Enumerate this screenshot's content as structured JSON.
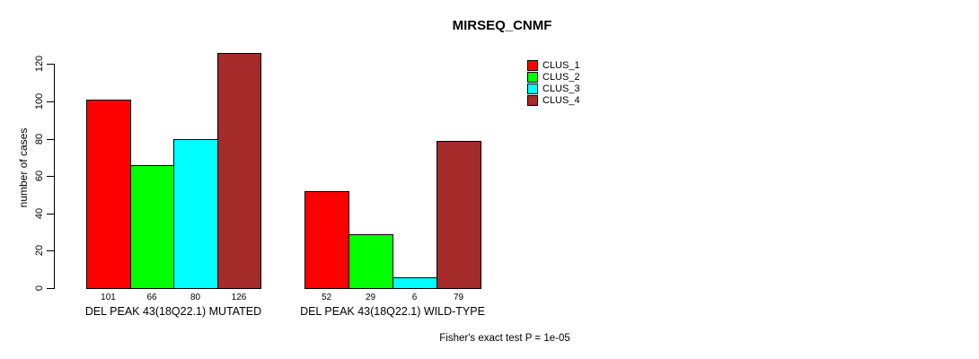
{
  "chart_data": {
    "type": "bar",
    "title": "MIRSEQ_CNMF",
    "ylabel": "number of cases",
    "xlabel": "",
    "ylim": [
      0,
      126
    ],
    "yticks": [
      0,
      20,
      40,
      60,
      80,
      100,
      120
    ],
    "grid": false,
    "legend_position": "top-right",
    "series": [
      {
        "name": "CLUS_1",
        "color": "#FF0000"
      },
      {
        "name": "CLUS_2",
        "color": "#00FF00"
      },
      {
        "name": "CLUS_3",
        "color": "#00FFFF"
      },
      {
        "name": "CLUS_4",
        "color": "#A52A2A"
      }
    ],
    "groups": [
      {
        "label": "DEL PEAK 43(18Q22.1) MUTATED",
        "values": [
          101,
          66,
          80,
          126
        ]
      },
      {
        "label": "DEL PEAK 43(18Q22.1) WILD-TYPE",
        "values": [
          52,
          29,
          6,
          79
        ]
      }
    ],
    "annotation": "Fisher's exact test P = 1e-05"
  }
}
